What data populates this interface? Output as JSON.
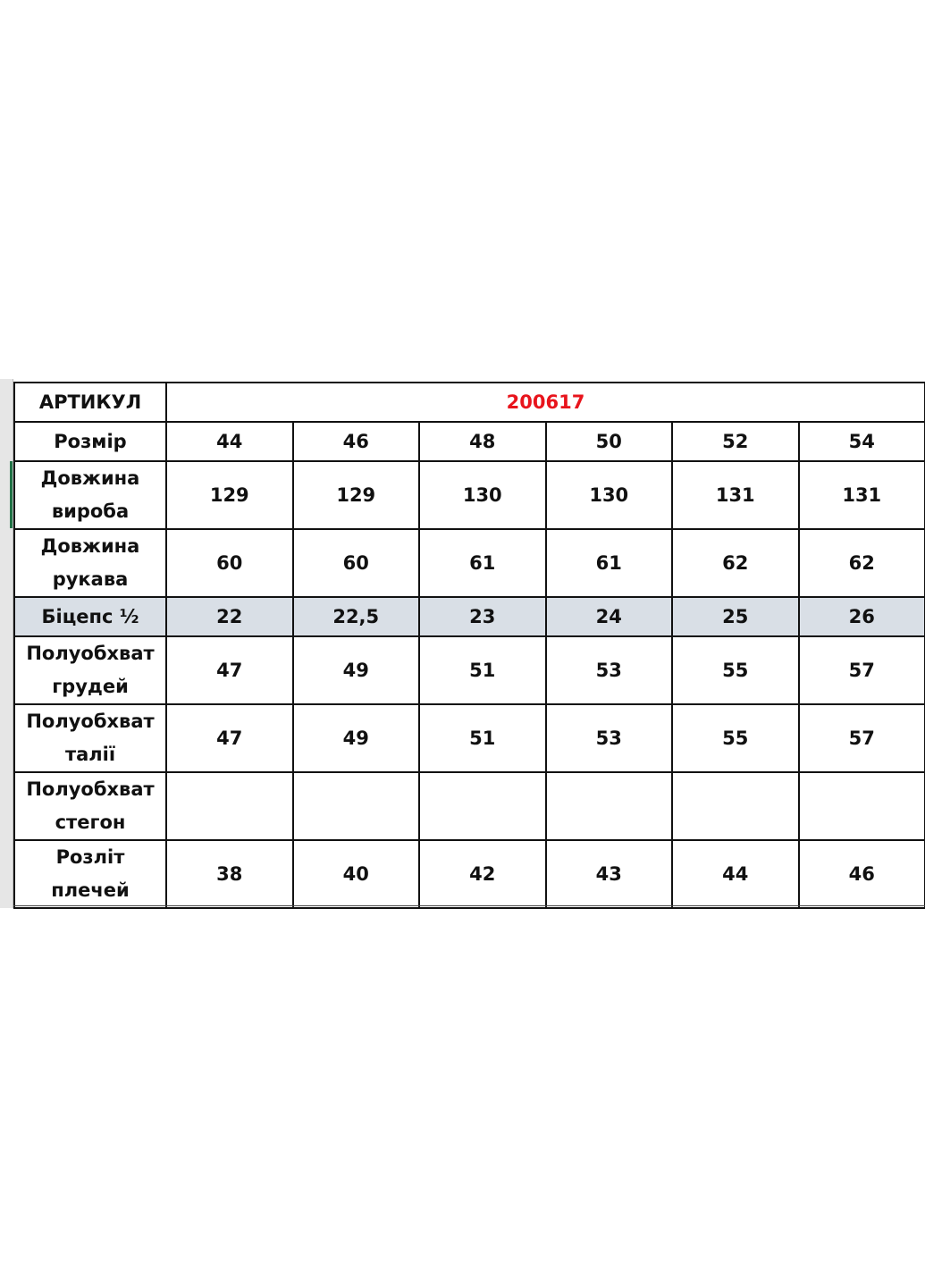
{
  "table": {
    "article_label": "АРТИКУЛ",
    "article_value": "200617",
    "article_color": "#e8141c",
    "rows": [
      {
        "label_1": "Розмір",
        "label_2": "",
        "values": [
          "44",
          "46",
          "48",
          "50",
          "52",
          "54"
        ]
      },
      {
        "label_1": "Довжина",
        "label_2": "виробa",
        "values": [
          "129",
          "129",
          "130",
          "130",
          "131",
          "131"
        ]
      },
      {
        "label_1": "Довжина",
        "label_2": "рукава",
        "values": [
          "60",
          "60",
          "61",
          "61",
          "62",
          "62"
        ]
      },
      {
        "label_1": "Біцепс ½",
        "label_2": "",
        "values": [
          "22",
          "22,5",
          "23",
          "24",
          "25",
          "26"
        ],
        "highlight": "#d9dfe6"
      },
      {
        "label_1": "Полуобхват",
        "label_2": "грудей",
        "values": [
          "47",
          "49",
          "51",
          "53",
          "55",
          "57"
        ]
      },
      {
        "label_1": "Полуобхват",
        "label_2": "талії",
        "values": [
          "47",
          "49",
          "51",
          "53",
          "55",
          "57"
        ]
      },
      {
        "label_1": "Полуобхват",
        "label_2": "стегон",
        "values": [
          "",
          "",
          "",
          "",
          "",
          ""
        ]
      },
      {
        "label_1": "Розліт",
        "label_2": "плечей",
        "values": [
          "38",
          "40",
          "42",
          "43",
          "44",
          "46"
        ]
      }
    ]
  }
}
